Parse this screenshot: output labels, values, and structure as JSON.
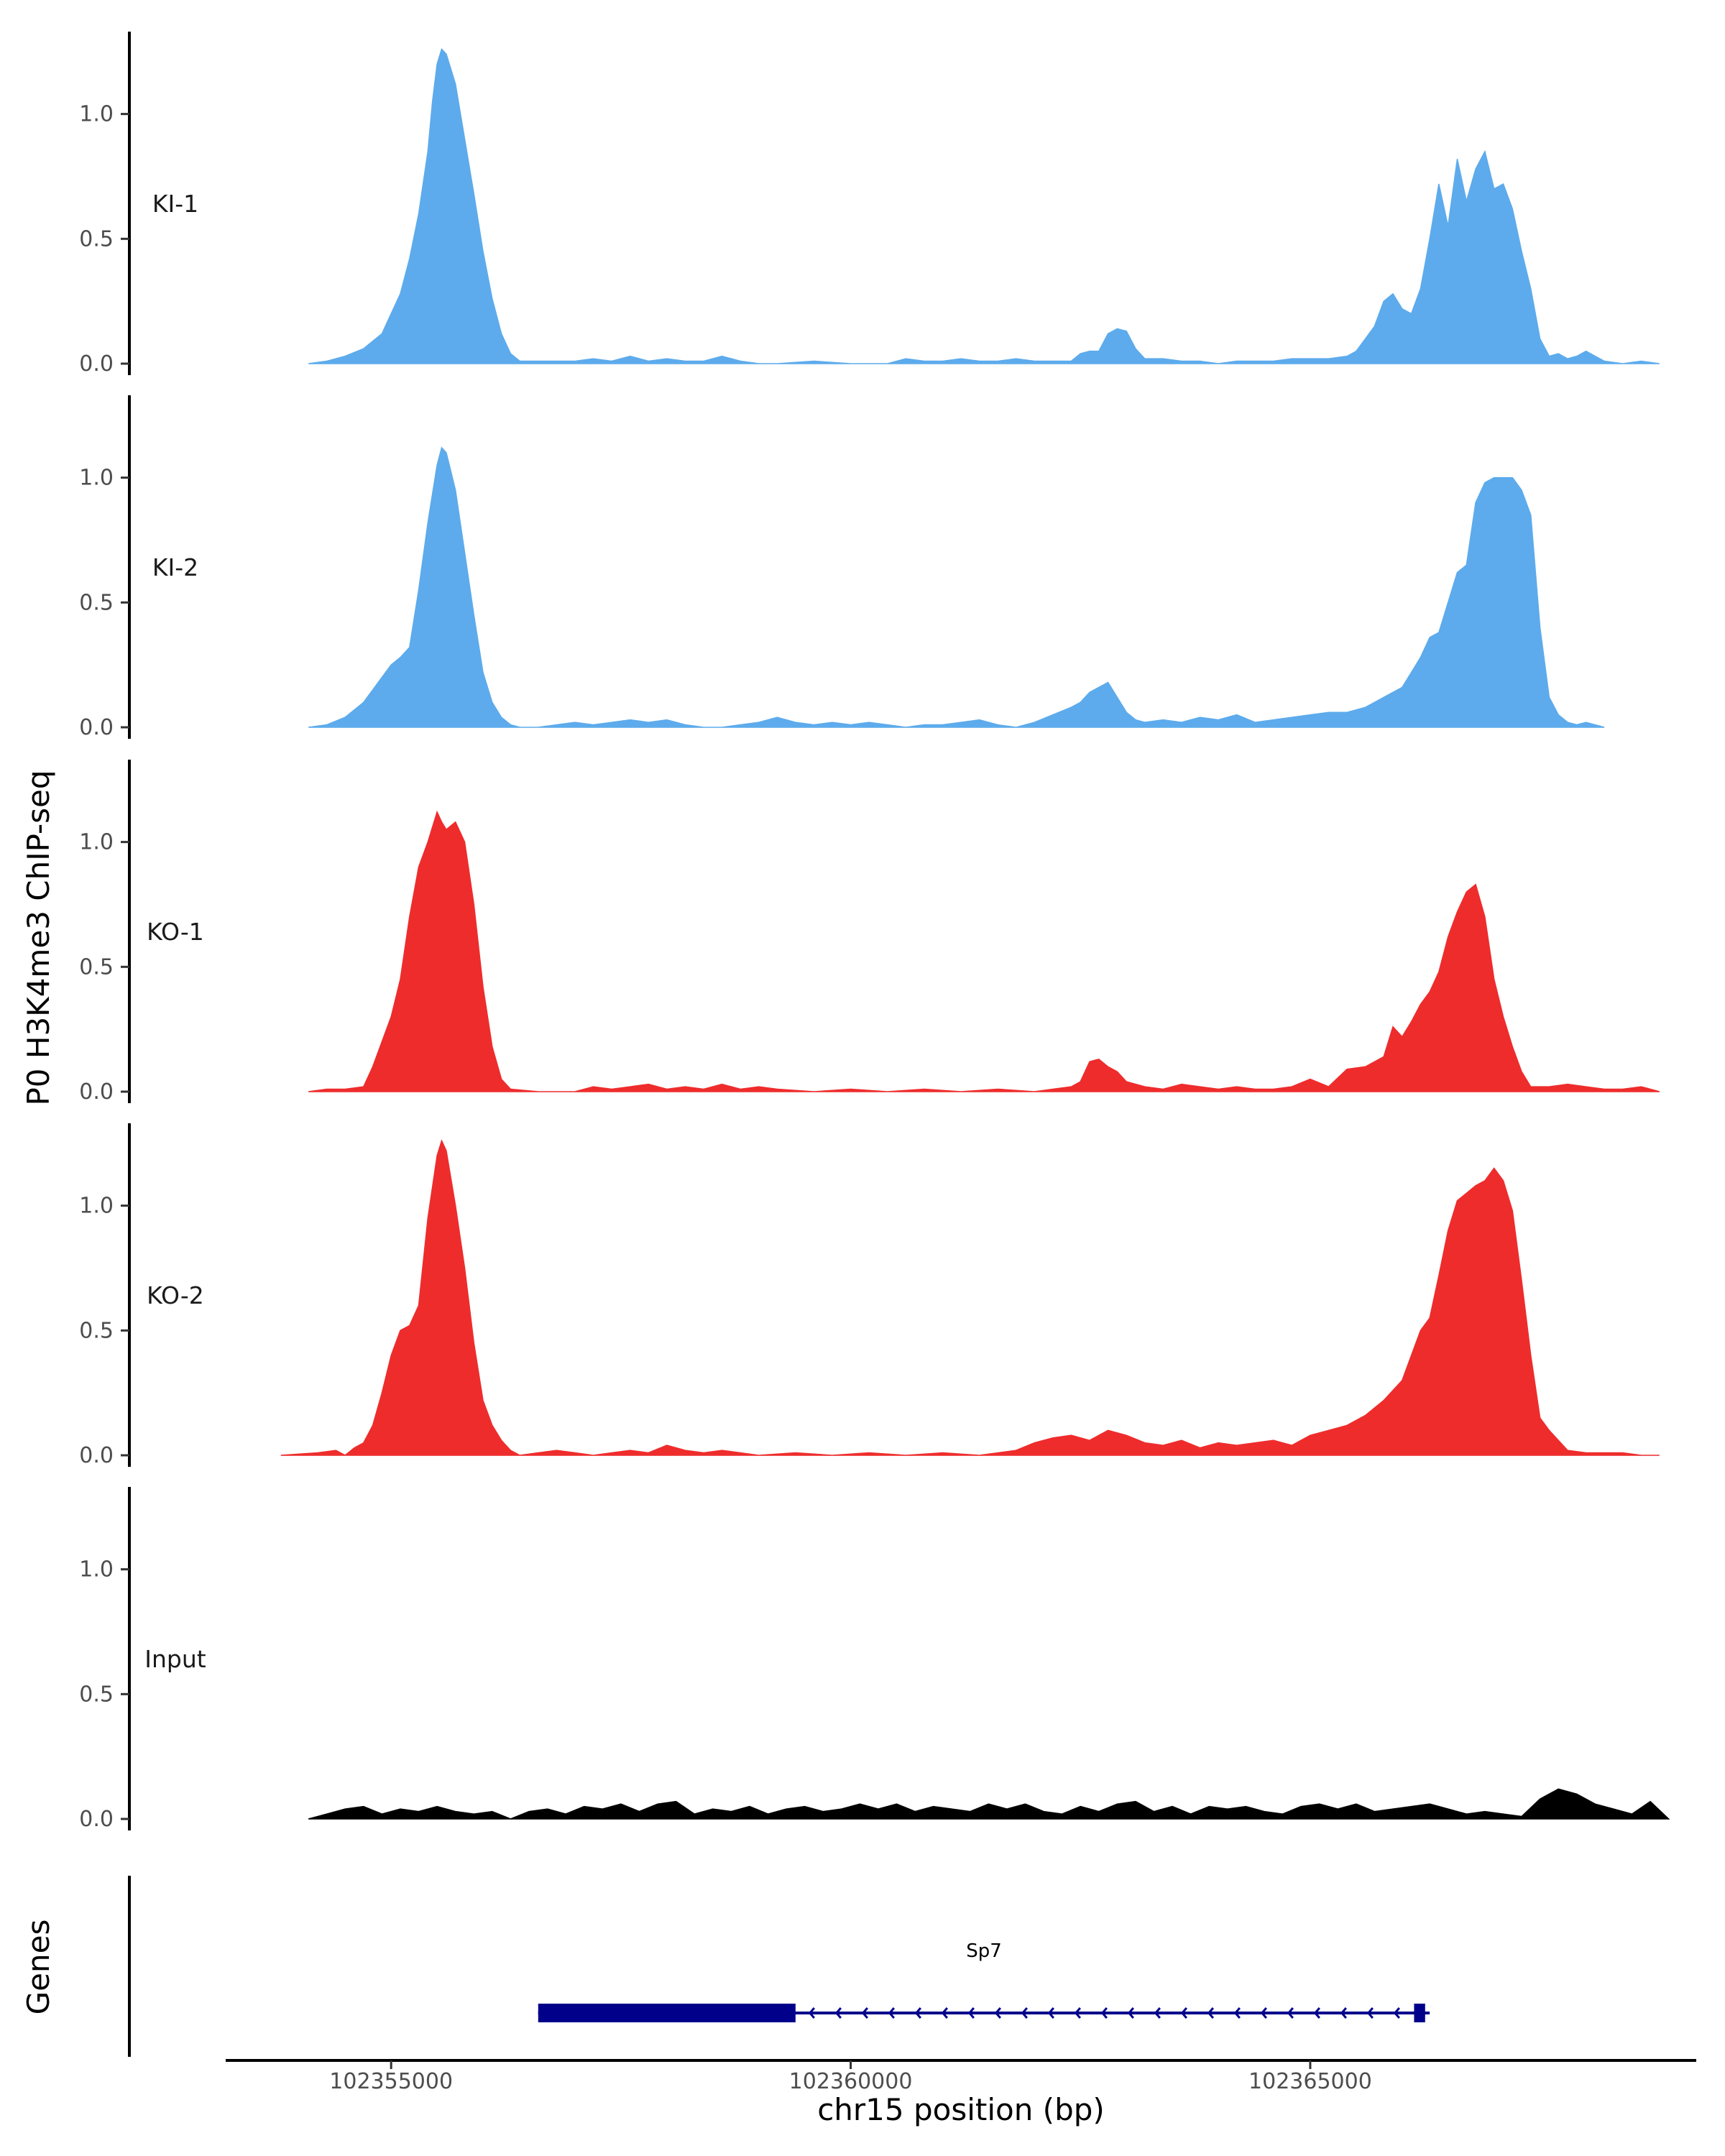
{
  "chart_data": {
    "type": "area",
    "ylabel": "P0 H3K4me3 ChIP-seq",
    "xlabel": "chr15 position (bp)",
    "xlim": [
      102353200,
      102369200
    ],
    "ylim": [
      0,
      1.33
    ],
    "yticks": [
      "0.0",
      "0.5",
      "1.0"
    ],
    "ytick_values": [
      0,
      0.5,
      1.0
    ],
    "xticks": [
      "102355000",
      "102360000",
      "102365000"
    ],
    "xtick_values": [
      102355000,
      102360000,
      102365000
    ],
    "tracks": [
      {
        "name": "KI-1",
        "color": "#5DABEC",
        "x": [
          102354100,
          102354300,
          102354500,
          102354700,
          102354800,
          102354900,
          102355000,
          102355100,
          102355200,
          102355300,
          102355400,
          102355450,
          102355500,
          102355550,
          102355600,
          102355700,
          102355800,
          102355900,
          102356000,
          102356100,
          102356200,
          102356300,
          102356400,
          102356600,
          102356800,
          102357000,
          102357200,
          102357400,
          102357600,
          102357800,
          102358000,
          102358200,
          102358400,
          102358600,
          102358800,
          102359000,
          102359200,
          102359600,
          102360000,
          102360400,
          102360600,
          102360800,
          102361000,
          102361200,
          102361400,
          102361600,
          102361800,
          102362000,
          102362200,
          102362400,
          102362500,
          102362600,
          102362700,
          102362800,
          102362900,
          102363000,
          102363100,
          102363200,
          102363400,
          102363600,
          102363800,
          102364000,
          102364200,
          102364400,
          102364600,
          102364800,
          102365000,
          102365200,
          102365400,
          102365500,
          102365600,
          102365700,
          102365800,
          102365900,
          102366000,
          102366100,
          102366200,
          102366300,
          102366400,
          102366500,
          102366600,
          102366700,
          102366800,
          102366900,
          102367000,
          102367100,
          102367200,
          102367300,
          102367400,
          102367500,
          102367600,
          102367700,
          102367800,
          102367900,
          102368000,
          102368200,
          102368400,
          102368600,
          102368800
        ],
        "values": [
          0.0,
          0.01,
          0.03,
          0.06,
          0.09,
          0.12,
          0.2,
          0.28,
          0.42,
          0.6,
          0.85,
          1.05,
          1.2,
          1.26,
          1.24,
          1.12,
          0.9,
          0.68,
          0.45,
          0.26,
          0.12,
          0.04,
          0.01,
          0.01,
          0.01,
          0.01,
          0.02,
          0.01,
          0.03,
          0.01,
          0.02,
          0.01,
          0.01,
          0.03,
          0.01,
          0.0,
          0.0,
          0.01,
          0.0,
          0.0,
          0.02,
          0.01,
          0.01,
          0.02,
          0.01,
          0.01,
          0.02,
          0.01,
          0.01,
          0.01,
          0.04,
          0.05,
          0.05,
          0.12,
          0.14,
          0.13,
          0.06,
          0.02,
          0.02,
          0.01,
          0.01,
          0.0,
          0.01,
          0.01,
          0.01,
          0.02,
          0.02,
          0.02,
          0.03,
          0.05,
          0.1,
          0.15,
          0.25,
          0.28,
          0.22,
          0.2,
          0.3,
          0.5,
          0.72,
          0.55,
          0.82,
          0.65,
          0.78,
          0.85,
          0.7,
          0.72,
          0.62,
          0.45,
          0.3,
          0.1,
          0.03,
          0.04,
          0.02,
          0.03,
          0.05,
          0.01,
          0.0,
          0.01,
          0.0
        ]
      },
      {
        "name": "KI-2",
        "color": "#5DABEC",
        "x": [
          102354100,
          102354300,
          102354500,
          102354700,
          102354800,
          102354900,
          102355000,
          102355100,
          102355200,
          102355300,
          102355400,
          102355500,
          102355550,
          102355600,
          102355700,
          102355800,
          102355900,
          102356000,
          102356100,
          102356200,
          102356300,
          102356400,
          102356600,
          102356800,
          102357000,
          102357200,
          102357400,
          102357600,
          102357800,
          102358000,
          102358200,
          102358400,
          102358600,
          102358800,
          102359000,
          102359200,
          102359400,
          102359600,
          102359800,
          102360000,
          102360200,
          102360400,
          102360600,
          102360800,
          102361000,
          102361200,
          102361400,
          102361600,
          102361800,
          102362000,
          102362200,
          102362400,
          102362500,
          102362600,
          102362700,
          102362800,
          102362900,
          102363000,
          102363100,
          102363200,
          102363400,
          102363600,
          102363800,
          102364000,
          102364200,
          102364400,
          102364600,
          102364800,
          102365000,
          102365200,
          102365400,
          102365600,
          102365800,
          102366000,
          102366100,
          102366200,
          102366300,
          102366400,
          102366500,
          102366600,
          102366700,
          102366800,
          102366900,
          102367000,
          102367100,
          102367200,
          102367300,
          102367400,
          102367500,
          102367600,
          102367700,
          102367800,
          102367900,
          102368000,
          102368200
        ],
        "values": [
          0.0,
          0.01,
          0.04,
          0.1,
          0.15,
          0.2,
          0.25,
          0.28,
          0.32,
          0.55,
          0.82,
          1.05,
          1.12,
          1.1,
          0.95,
          0.7,
          0.45,
          0.22,
          0.1,
          0.04,
          0.01,
          0.0,
          0.0,
          0.01,
          0.02,
          0.01,
          0.02,
          0.03,
          0.02,
          0.03,
          0.01,
          0.0,
          0.0,
          0.01,
          0.02,
          0.04,
          0.02,
          0.01,
          0.02,
          0.01,
          0.02,
          0.01,
          0.0,
          0.01,
          0.01,
          0.02,
          0.03,
          0.01,
          0.0,
          0.02,
          0.05,
          0.08,
          0.1,
          0.14,
          0.16,
          0.18,
          0.12,
          0.06,
          0.03,
          0.02,
          0.03,
          0.02,
          0.04,
          0.03,
          0.05,
          0.02,
          0.03,
          0.04,
          0.05,
          0.06,
          0.06,
          0.08,
          0.12,
          0.16,
          0.22,
          0.28,
          0.36,
          0.38,
          0.5,
          0.62,
          0.65,
          0.9,
          0.98,
          1.0,
          1.0,
          1.0,
          0.95,
          0.85,
          0.4,
          0.12,
          0.05,
          0.02,
          0.01,
          0.02,
          0.0
        ]
      },
      {
        "name": "KO-1",
        "color": "#EE2C2C",
        "x": [
          102354100,
          102354300,
          102354500,
          102354700,
          102354800,
          102354900,
          102355000,
          102355100,
          102355200,
          102355300,
          102355400,
          102355500,
          102355550,
          102355600,
          102355700,
          102355800,
          102355900,
          102356000,
          102356100,
          102356200,
          102356300,
          102356600,
          102357000,
          102357200,
          102357400,
          102357600,
          102357800,
          102358000,
          102358200,
          102358400,
          102358600,
          102358800,
          102359000,
          102359200,
          102359600,
          102360000,
          102360400,
          102360800,
          102361200,
          102361600,
          102362000,
          102362200,
          102362400,
          102362500,
          102362600,
          102362700,
          102362800,
          102362900,
          102363000,
          102363200,
          102363400,
          102363600,
          102363800,
          102364000,
          102364200,
          102364400,
          102364600,
          102364800,
          102365000,
          102365200,
          102365400,
          102365600,
          102365800,
          102365900,
          102366000,
          102366100,
          102366200,
          102366300,
          102366400,
          102366500,
          102366600,
          102366700,
          102366800,
          102366900,
          102367000,
          102367100,
          102367200,
          102367300,
          102367400,
          102367600,
          102367800,
          102368000,
          102368200,
          102368400,
          102368600,
          102368800
        ],
        "values": [
          0.0,
          0.01,
          0.01,
          0.02,
          0.1,
          0.2,
          0.3,
          0.45,
          0.7,
          0.9,
          1.0,
          1.12,
          1.08,
          1.05,
          1.08,
          1.0,
          0.75,
          0.42,
          0.18,
          0.05,
          0.01,
          0.0,
          0.0,
          0.02,
          0.01,
          0.02,
          0.03,
          0.01,
          0.02,
          0.01,
          0.03,
          0.01,
          0.02,
          0.01,
          0.0,
          0.01,
          0.0,
          0.01,
          0.0,
          0.01,
          0.0,
          0.01,
          0.02,
          0.04,
          0.12,
          0.13,
          0.1,
          0.08,
          0.04,
          0.02,
          0.01,
          0.03,
          0.02,
          0.01,
          0.02,
          0.01,
          0.01,
          0.02,
          0.05,
          0.02,
          0.09,
          0.1,
          0.14,
          0.26,
          0.22,
          0.28,
          0.35,
          0.4,
          0.48,
          0.62,
          0.72,
          0.8,
          0.83,
          0.7,
          0.45,
          0.3,
          0.18,
          0.08,
          0.02,
          0.02,
          0.03,
          0.02,
          0.01,
          0.01,
          0.02,
          0.0
        ]
      },
      {
        "name": "KO-2",
        "color": "#EE2C2C",
        "x": [
          102353800,
          102354200,
          102354400,
          102354500,
          102354600,
          102354700,
          102354800,
          102354900,
          102355000,
          102355100,
          102355200,
          102355300,
          102355400,
          102355500,
          102355550,
          102355600,
          102355700,
          102355800,
          102355900,
          102356000,
          102356100,
          102356200,
          102356300,
          102356400,
          102356600,
          102356800,
          102357000,
          102357200,
          102357400,
          102357600,
          102357800,
          102358000,
          102358200,
          102358400,
          102358600,
          102359000,
          102359400,
          102359800,
          102360200,
          102360600,
          102361000,
          102361400,
          102361800,
          102362000,
          102362200,
          102362400,
          102362600,
          102362800,
          102363000,
          102363200,
          102363400,
          102363600,
          102363800,
          102364000,
          102364200,
          102364400,
          102364600,
          102364800,
          102365000,
          102365200,
          102365400,
          102365600,
          102365800,
          102366000,
          102366200,
          102366300,
          102366400,
          102366500,
          102366600,
          102366700,
          102366800,
          102366900,
          102367000,
          102367100,
          102367200,
          102367300,
          102367400,
          102367500,
          102367600,
          102367800,
          102368000,
          102368200,
          102368400,
          102368600,
          102368800
        ],
        "values": [
          0.0,
          0.01,
          0.02,
          0.0,
          0.03,
          0.05,
          0.12,
          0.25,
          0.4,
          0.5,
          0.52,
          0.6,
          0.95,
          1.2,
          1.26,
          1.22,
          1.0,
          0.75,
          0.45,
          0.22,
          0.12,
          0.06,
          0.02,
          0.0,
          0.01,
          0.02,
          0.01,
          0.0,
          0.01,
          0.02,
          0.01,
          0.04,
          0.02,
          0.01,
          0.02,
          0.0,
          0.01,
          0.0,
          0.01,
          0.0,
          0.01,
          0.0,
          0.02,
          0.05,
          0.07,
          0.08,
          0.06,
          0.1,
          0.08,
          0.05,
          0.04,
          0.06,
          0.03,
          0.05,
          0.04,
          0.05,
          0.06,
          0.04,
          0.08,
          0.1,
          0.12,
          0.16,
          0.22,
          0.3,
          0.5,
          0.55,
          0.72,
          0.9,
          1.02,
          1.05,
          1.08,
          1.1,
          1.15,
          1.1,
          0.98,
          0.7,
          0.4,
          0.15,
          0.1,
          0.02,
          0.01,
          0.01,
          0.01,
          0.0,
          0.0
        ]
      },
      {
        "name": "Input",
        "color": "#000000",
        "x": [
          102354100,
          102354300,
          102354500,
          102354700,
          102354900,
          102355100,
          102355300,
          102355500,
          102355700,
          102355900,
          102356100,
          102356300,
          102356500,
          102356700,
          102356900,
          102357100,
          102357300,
          102357500,
          102357700,
          102357900,
          102358100,
          102358300,
          102358500,
          102358700,
          102358900,
          102359100,
          102359300,
          102359500,
          102359700,
          102359900,
          102360100,
          102360300,
          102360500,
          102360700,
          102360900,
          102361100,
          102361300,
          102361500,
          102361700,
          102361900,
          102362100,
          102362300,
          102362500,
          102362700,
          102362900,
          102363100,
          102363300,
          102363500,
          102363700,
          102363900,
          102364100,
          102364300,
          102364500,
          102364700,
          102364900,
          102365100,
          102365300,
          102365500,
          102365700,
          102365900,
          102366100,
          102366300,
          102366500,
          102366700,
          102366900,
          102367100,
          102367300,
          102367500,
          102367700,
          102367900,
          102368100,
          102368300,
          102368500,
          102368700,
          102368900
        ],
        "values": [
          0.0,
          0.02,
          0.04,
          0.05,
          0.02,
          0.04,
          0.03,
          0.05,
          0.03,
          0.02,
          0.03,
          0.0,
          0.03,
          0.04,
          0.02,
          0.05,
          0.04,
          0.06,
          0.03,
          0.06,
          0.07,
          0.02,
          0.04,
          0.03,
          0.05,
          0.02,
          0.04,
          0.05,
          0.03,
          0.04,
          0.06,
          0.04,
          0.06,
          0.03,
          0.05,
          0.04,
          0.03,
          0.06,
          0.04,
          0.06,
          0.03,
          0.02,
          0.05,
          0.03,
          0.06,
          0.07,
          0.03,
          0.05,
          0.02,
          0.05,
          0.04,
          0.05,
          0.03,
          0.02,
          0.05,
          0.06,
          0.04,
          0.06,
          0.03,
          0.04,
          0.05,
          0.06,
          0.04,
          0.02,
          0.03,
          0.02,
          0.01,
          0.08,
          0.12,
          0.1,
          0.06,
          0.04,
          0.02,
          0.07,
          0.0
        ]
      }
    ],
    "genes": [
      {
        "name": "Sp7",
        "strand": "-",
        "start": 102356600,
        "end": 102366300,
        "thick_segments": [
          [
            102356600,
            102359400
          ],
          [
            102366130,
            102366250
          ]
        ]
      }
    ],
    "gene_track_label": "Genes",
    "colors": {
      "KI": "#5DABEC",
      "KO": "#EE2C2C",
      "Input": "#000000",
      "gene": "#00008B"
    }
  }
}
